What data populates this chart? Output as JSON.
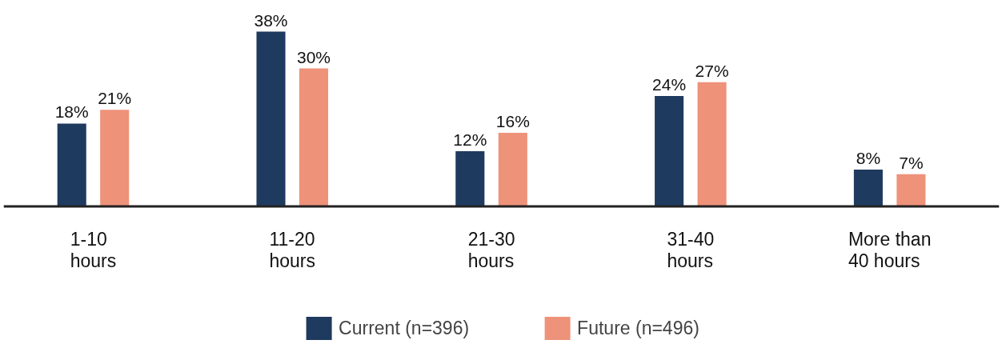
{
  "chart_data": {
    "type": "bar",
    "categories": [
      "1-10\nhours",
      "11-20\nhours",
      "21-30\nhours",
      "31-40\nhours",
      "More than\n40 hours"
    ],
    "series": [
      {
        "name": "Current (n=396)",
        "color": "#1f3a5f",
        "values": [
          18,
          38,
          12,
          24,
          8
        ],
        "value_labels": [
          "18%",
          "38%",
          "12%",
          "24%",
          "8%"
        ]
      },
      {
        "name": "Future (n=496)",
        "color": "#ee927a",
        "values": [
          21,
          30,
          16,
          27,
          7
        ],
        "value_labels": [
          "21%",
          "30%",
          "16%",
          "27%",
          "7%"
        ]
      }
    ],
    "legend": "bottom"
  }
}
